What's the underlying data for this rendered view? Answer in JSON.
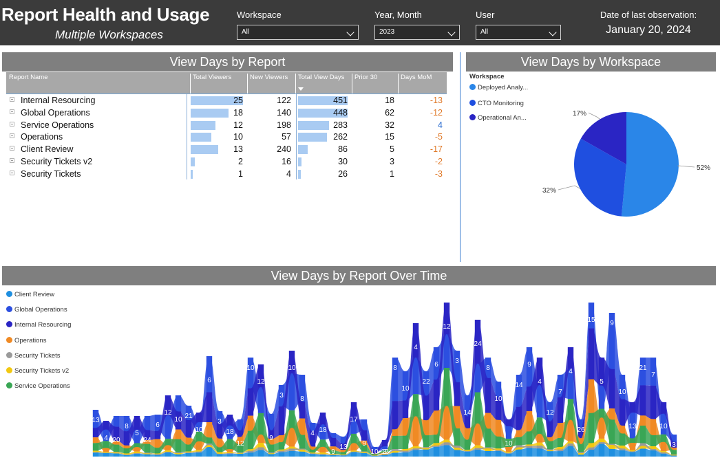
{
  "header": {
    "title": "Report Health and Usage",
    "subtitle": "Multiple Workspaces",
    "filters": [
      {
        "label": "Workspace",
        "value": "All"
      },
      {
        "label": "Year, Month",
        "value": "2023"
      },
      {
        "label": "User",
        "value": "All"
      }
    ],
    "last_observation_label": "Date of last observation:",
    "last_observation_value": "January 20, 2024"
  },
  "report_table": {
    "title": "View Days by Report",
    "columns": [
      "Report Name",
      "Total Viewers",
      "New Viewers",
      "Total View Days",
      "Prior 30",
      "Days MoM"
    ],
    "rows": [
      {
        "name": "Internal Resourcing",
        "total_viewers": "25",
        "new_viewers": "122",
        "total_view_days": "451",
        "prior_30": "18",
        "days_mom": "-13"
      },
      {
        "name": "Global Operations",
        "total_viewers": "18",
        "new_viewers": "140",
        "total_view_days": "448",
        "prior_30": "62",
        "days_mom": "-12"
      },
      {
        "name": "Service Operations",
        "total_viewers": "12",
        "new_viewers": "198",
        "total_view_days": "283",
        "prior_30": "32",
        "days_mom": "4"
      },
      {
        "name": "Operations",
        "total_viewers": "10",
        "new_viewers": "57",
        "total_view_days": "262",
        "prior_30": "15",
        "days_mom": "-5"
      },
      {
        "name": "Client Review",
        "total_viewers": "13",
        "new_viewers": "240",
        "total_view_days": "86",
        "prior_30": "5",
        "days_mom": "-17"
      },
      {
        "name": "Security Tickets v2",
        "total_viewers": "2",
        "new_viewers": "16",
        "total_view_days": "30",
        "prior_30": "3",
        "days_mom": "-2"
      },
      {
        "name": "Security Tickets",
        "total_viewers": "1",
        "new_viewers": "4",
        "total_view_days": "26",
        "prior_30": "1",
        "days_mom": "-3"
      }
    ]
  },
  "workspace_pie": {
    "title": "View Days by Workspace",
    "legend_title": "Workspace",
    "legend": [
      "Deployed Analy...",
      "CTO Monitoring",
      "Operational An..."
    ],
    "colors": [
      "#2a86e8",
      "#1f4fe0",
      "#2a25c4"
    ]
  },
  "stream": {
    "title": "View Days by Report Over Time",
    "legend": [
      {
        "name": "Client Review",
        "color": "#1f8fe0"
      },
      {
        "name": "Global Operations",
        "color": "#2c4fe0"
      },
      {
        "name": "Internal Resourcing",
        "color": "#2a25c4"
      },
      {
        "name": "Operations",
        "color": "#f08a24"
      },
      {
        "name": "Security Tickets",
        "color": "#9a9a9a"
      },
      {
        "name": "Security Tickets v2",
        "color": "#f2c811"
      },
      {
        "name": "Service Operations",
        "color": "#3aa655"
      }
    ],
    "labels": [
      "13",
      "4",
      "20",
      "8",
      "5",
      "24",
      "6",
      "12",
      "10",
      "21",
      "10",
      "6",
      "3",
      "18",
      "12",
      "10",
      "12",
      "9",
      "3",
      "10",
      "8",
      "4",
      "18",
      "9",
      "13",
      "17",
      "9",
      "10",
      "3",
      "12",
      "8",
      "10",
      "4",
      "22",
      "6",
      "12",
      "3",
      "14",
      "24",
      "8",
      "10",
      "10",
      "14",
      "9",
      "4",
      "12",
      "7",
      "4",
      "26",
      "15",
      "5",
      "9",
      "10",
      "13",
      "21",
      "7",
      "10",
      "3"
    ]
  },
  "chart_data": [
    {
      "type": "pie",
      "title": "View Days by Workspace",
      "categories": [
        "Deployed Analy...",
        "CTO Monitoring",
        "Operational An..."
      ],
      "values": [
        52,
        32,
        17
      ],
      "value_labels": [
        "52%",
        "32%",
        "17%"
      ],
      "legend": "top-left"
    },
    {
      "type": "area",
      "title": "View Days by Report Over Time",
      "legend": "left",
      "series": [
        {
          "name": "Client Review"
        },
        {
          "name": "Global Operations"
        },
        {
          "name": "Internal Resourcing"
        },
        {
          "name": "Operations"
        },
        {
          "name": "Security Tickets"
        },
        {
          "name": "Security Tickets v2"
        },
        {
          "name": "Service Operations"
        }
      ]
    }
  ]
}
